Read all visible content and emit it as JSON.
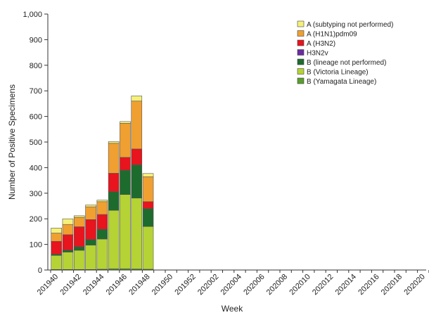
{
  "chart_data": {
    "type": "bar",
    "stacked": true,
    "title": "",
    "xlabel": "Week",
    "ylabel": "Number of Positive Specimens",
    "ylim": [
      0,
      1000
    ],
    "yticks": [
      "0",
      "100",
      "200",
      "300",
      "400",
      "500",
      "600",
      "700",
      "800",
      "900",
      "1,000"
    ],
    "x_tick_labels": [
      "201940",
      "201942",
      "201944",
      "201946",
      "201948",
      "201950",
      "201952",
      "202002",
      "202004",
      "202006",
      "202008",
      "202010",
      "202012",
      "202014",
      "202016",
      "202018",
      "202020"
    ],
    "categories": [
      "201940",
      "201941",
      "201942",
      "201943",
      "201944",
      "201945",
      "201946",
      "201947",
      "201948"
    ],
    "legend_position": "top-right",
    "grid": false,
    "series": [
      {
        "name": "B (Yamagata Lineage)",
        "color": "#5a9e2f",
        "values": [
          2,
          2,
          2,
          2,
          3,
          5,
          5,
          4,
          3
        ]
      },
      {
        "name": "B (Victoria Lineage)",
        "color": "#b5d334",
        "values": [
          55,
          68,
          75,
          95,
          118,
          228,
          290,
          277,
          167
        ]
      },
      {
        "name": "B (lineage not performed)",
        "color": "#1e6b2e",
        "values": [
          5,
          8,
          14,
          22,
          38,
          73,
          95,
          130,
          70
        ]
      },
      {
        "name": "H3N2v",
        "color": "#6a2ca0",
        "values": [
          0,
          0,
          0,
          0,
          0,
          0,
          0,
          0,
          0
        ]
      },
      {
        "name": "A (H3N2)",
        "color": "#e8141e",
        "values": [
          50,
          60,
          78,
          78,
          58,
          72,
          50,
          62,
          27
        ]
      },
      {
        "name": "A (H1N1)pdm09",
        "color": "#f0a030",
        "values": [
          32,
          40,
          37,
          50,
          50,
          117,
          133,
          187,
          97
        ]
      },
      {
        "name": "A (subtyping not performed)",
        "color": "#f5f07a",
        "values": [
          20,
          22,
          6,
          7,
          6,
          7,
          7,
          20,
          13
        ]
      }
    ],
    "legend_order": [
      "A (subtyping not performed)",
      "A (H1N1)pdm09",
      "A (H3N2)",
      "H3N2v",
      "B (lineage not performed)",
      "B (Victoria Lineage)",
      "B (Yamagata Lineage)"
    ]
  }
}
